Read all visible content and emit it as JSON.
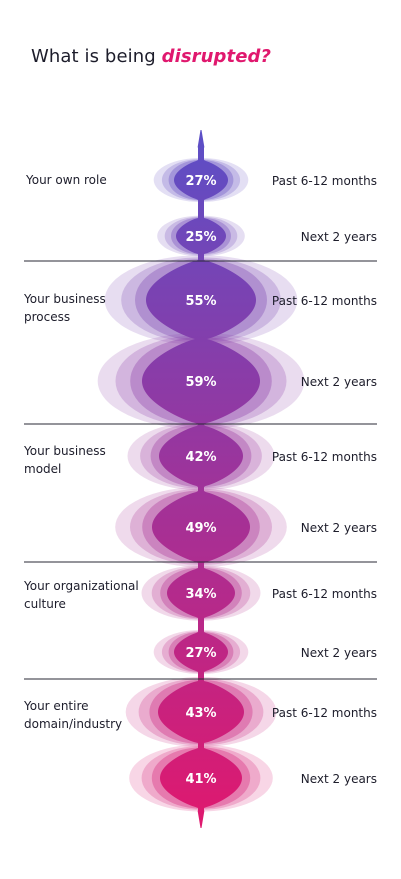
{
  "title": {
    "prefix": "What is being ",
    "emphasis": "disrupted?"
  },
  "colors": {
    "emphasis": "#e0186e",
    "gradient_top": "#5b4fc7",
    "gradient_bottom": "#e0186e",
    "divider": "#2a2a35"
  },
  "chart_data": {
    "type": "bubble-stem",
    "title": "What is being disrupted?",
    "unit": "%",
    "categories": [
      {
        "label_lines": [
          "Your own role"
        ],
        "values": [
          {
            "period": "Past 6-12 months",
            "value": 27
          },
          {
            "period": "Next 2 years",
            "value": 25
          }
        ]
      },
      {
        "label_lines": [
          "Your business",
          "process"
        ],
        "values": [
          {
            "period": "Past 6-12 months",
            "value": 55
          },
          {
            "period": "Next 2 years",
            "value": 59
          }
        ]
      },
      {
        "label_lines": [
          "Your business",
          "model"
        ],
        "values": [
          {
            "period": "Past 6-12 months",
            "value": 42
          },
          {
            "period": "Next 2 years",
            "value": 49
          }
        ]
      },
      {
        "label_lines": [
          "Your organizational",
          "culture"
        ],
        "values": [
          {
            "period": "Past 6-12 months",
            "value": 34
          },
          {
            "period": "Next 2 years",
            "value": 27
          }
        ]
      },
      {
        "label_lines": [
          "Your entire",
          "domain/industry"
        ],
        "values": [
          {
            "period": "Past 6-12 months",
            "value": 43
          },
          {
            "period": "Next 2 years",
            "value": 41
          }
        ]
      }
    ]
  }
}
